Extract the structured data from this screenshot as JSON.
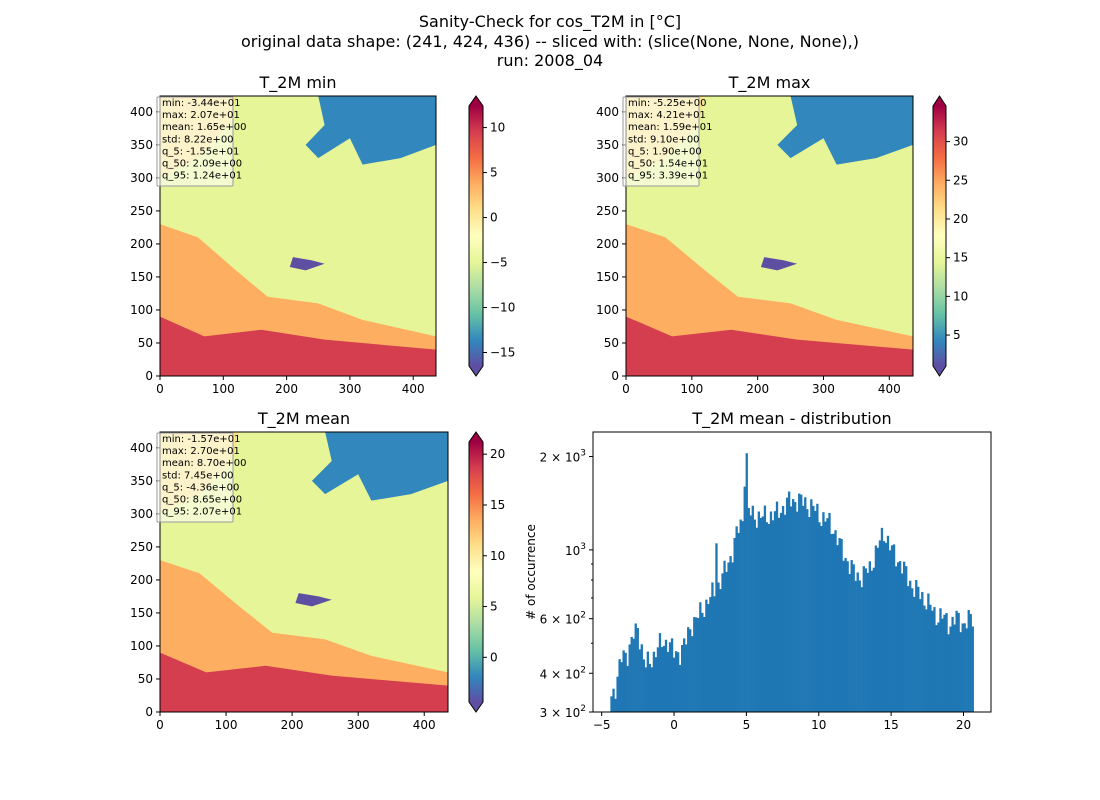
{
  "figure": {
    "title_lines": [
      "Sanity-Check for cos_T2M in [°C]",
      "original data shape: (241, 424, 436) -- sliced with: (slice(None, None, None),)",
      "run: 2008_04"
    ]
  },
  "colors": {
    "colormap": "Spectral_r",
    "cmap_stops": [
      "#5e4fa2",
      "#3288bd",
      "#66c2a5",
      "#abdda4",
      "#e6f598",
      "#ffffbf",
      "#fee08b",
      "#fdae61",
      "#f46d43",
      "#d53e4f",
      "#9e0142"
    ],
    "histogram_bar": "#1f77b4",
    "stats_box_bg": "#ffffff"
  },
  "chart_data": [
    {
      "type": "heatmap",
      "title": "T_2M min",
      "xlim": [
        0,
        436
      ],
      "ylim": [
        0,
        424
      ],
      "xticks": [
        0,
        100,
        200,
        300,
        400
      ],
      "yticks": [
        0,
        50,
        100,
        150,
        200,
        250,
        300,
        350,
        400
      ],
      "colorbar": {
        "min": -16.5,
        "max": 12.4,
        "ticks": [
          -15,
          -10,
          -5,
          0,
          5,
          10
        ],
        "extend": "both"
      },
      "stats": [
        "min: -3.44e+01",
        "max: 2.07e+01",
        "mean: 1.65e+00",
        "std: 8.22e+00",
        "q_5: -1.55e+01",
        "q_50: 2.09e+00",
        "q_95: 1.24e+01"
      ]
    },
    {
      "type": "heatmap",
      "title": "T_2M max",
      "xlim": [
        0,
        436
      ],
      "ylim": [
        0,
        424
      ],
      "xticks": [
        0,
        100,
        200,
        300,
        400
      ],
      "yticks": [
        0,
        50,
        100,
        150,
        200,
        250,
        300,
        350,
        400
      ],
      "colorbar": {
        "min": 1.0,
        "max": 34.6,
        "ticks": [
          5,
          10,
          15,
          20,
          25,
          30
        ],
        "extend": "both"
      },
      "stats": [
        "min: -5.25e+00",
        "max: 4.21e+01",
        "mean: 1.59e+01",
        "std: 9.10e+00",
        "q_5: 1.90e+00",
        "q_50: 1.54e+01",
        "q_95: 3.39e+01"
      ]
    },
    {
      "type": "heatmap",
      "title": "T_2M mean",
      "xlim": [
        0,
        436
      ],
      "ylim": [
        0,
        424
      ],
      "xticks": [
        0,
        100,
        200,
        300,
        400
      ],
      "yticks": [
        0,
        50,
        100,
        150,
        200,
        250,
        300,
        350,
        400
      ],
      "colorbar": {
        "min": -4.4,
        "max": 21.2,
        "ticks": [
          0,
          5,
          10,
          15,
          20
        ],
        "extend": "both"
      },
      "stats": [
        "min: -1.57e+01",
        "max: 2.70e+01",
        "mean: 8.70e+00",
        "std: 7.45e+00",
        "q_5: -4.36e+00",
        "q_50: 8.65e+00",
        "q_95: 2.07e+01"
      ]
    },
    {
      "type": "bar",
      "subtype": "histogram",
      "title": "T_2M mean - distribution",
      "xlabel": "",
      "ylabel": "# of occurrence",
      "xlim": [
        -5.6,
        21.9
      ],
      "ylim": [
        300,
        2400
      ],
      "yscale": "log",
      "xticks": [
        -5,
        0,
        5,
        10,
        15,
        20
      ],
      "ytick_labels": [
        {
          "value": 300,
          "base": "3",
          "exp": "2"
        },
        {
          "value": 400,
          "base": "4",
          "exp": "2"
        },
        {
          "value": 600,
          "base": "6",
          "exp": "2"
        },
        {
          "value": 1000,
          "base": "10",
          "exp": "3"
        },
        {
          "value": 2000,
          "base": "2",
          "exp": "3"
        }
      ],
      "bin_range": [
        -4.4,
        20.7
      ],
      "anchors": [
        [
          -4.4,
          330
        ],
        [
          -4.0,
          370
        ],
        [
          -3.6,
          450
        ],
        [
          -3.2,
          470
        ],
        [
          -2.7,
          540
        ],
        [
          -2.4,
          530
        ],
        [
          -2.0,
          420
        ],
        [
          -1.6,
          440
        ],
        [
          -1.2,
          480
        ],
        [
          -0.8,
          500
        ],
        [
          -0.4,
          510
        ],
        [
          0.0,
          460
        ],
        [
          0.4,
          470
        ],
        [
          0.8,
          500
        ],
        [
          1.2,
          580
        ],
        [
          1.6,
          600
        ],
        [
          2.0,
          650
        ],
        [
          2.5,
          700
        ],
        [
          3.0,
          760
        ],
        [
          3.5,
          850
        ],
        [
          4.0,
          980
        ],
        [
          4.4,
          1150
        ],
        [
          4.8,
          1280
        ],
        [
          5.1,
          1320
        ],
        [
          5.5,
          1300
        ],
        [
          6.0,
          1270
        ],
        [
          6.5,
          1290
        ],
        [
          7.0,
          1300
        ],
        [
          7.5,
          1370
        ],
        [
          8.0,
          1440
        ],
        [
          8.5,
          1450
        ],
        [
          9.0,
          1420
        ],
        [
          9.5,
          1380
        ],
        [
          10.0,
          1300
        ],
        [
          10.5,
          1250
        ],
        [
          11.0,
          1180
        ],
        [
          11.5,
          1020
        ],
        [
          12.0,
          920
        ],
        [
          12.5,
          830
        ],
        [
          13.0,
          820
        ],
        [
          13.5,
          870
        ],
        [
          14.0,
          990
        ],
        [
          14.5,
          1150
        ],
        [
          15.0,
          1000
        ],
        [
          15.5,
          930
        ],
        [
          16.0,
          840
        ],
        [
          16.5,
          760
        ],
        [
          17.0,
          720
        ],
        [
          17.5,
          680
        ],
        [
          18.0,
          620
        ],
        [
          18.5,
          610
        ],
        [
          19.0,
          580
        ],
        [
          19.5,
          600
        ],
        [
          20.0,
          580
        ],
        [
          20.6,
          600
        ]
      ],
      "spikes": [
        {
          "x": 5.0,
          "value": 2050
        },
        {
          "x": 4.9,
          "value": 1600
        },
        {
          "x": 2.9,
          "value": 1050
        },
        {
          "x": 3.5,
          "value": 900
        },
        {
          "x": -2.6,
          "value": 560
        }
      ]
    }
  ]
}
